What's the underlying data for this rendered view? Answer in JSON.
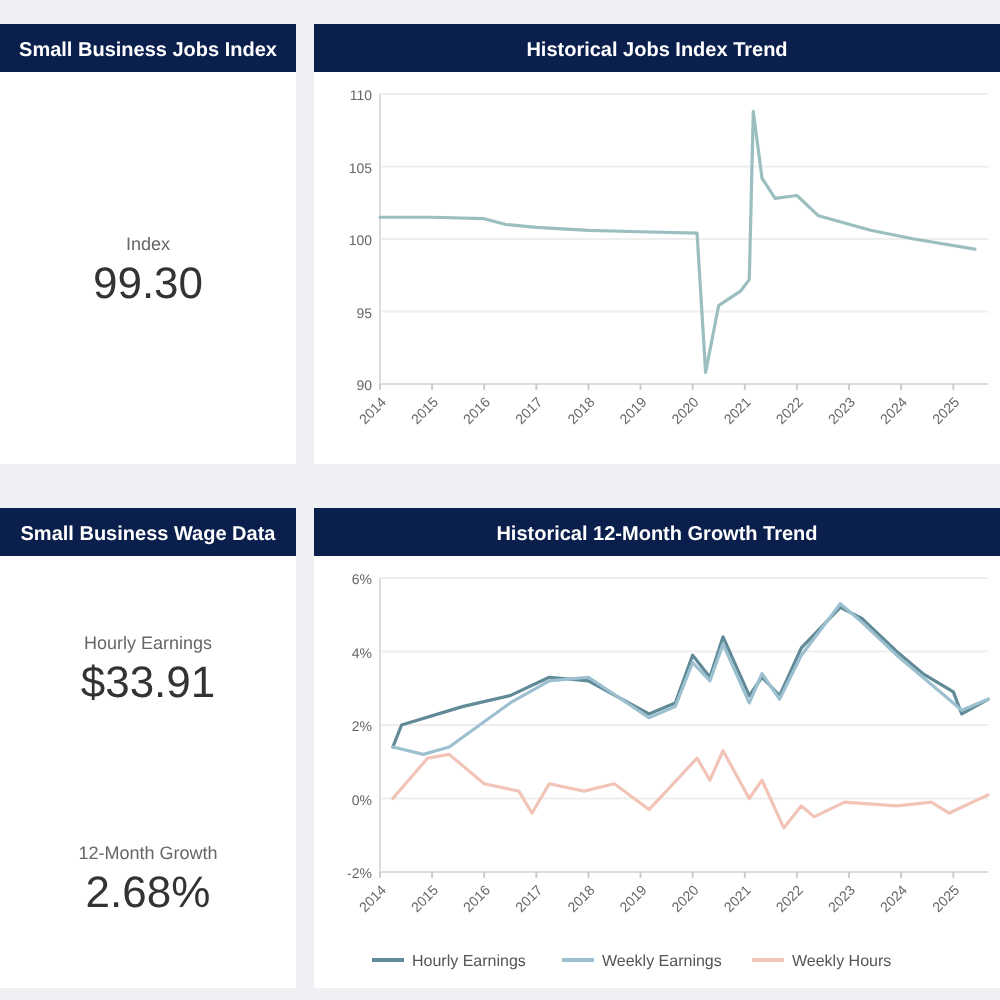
{
  "chart_data": [
    {
      "type": "other",
      "title": "Small Business Jobs Index",
      "annotations": [
        "Index",
        "99.30"
      ]
    },
    {
      "type": "line",
      "title": "Historical Jobs Index Trend",
      "x": [
        "2014-01",
        "2015-01",
        "2016-01",
        "2016-06",
        "2017-01",
        "2018-01",
        "2019-01",
        "2020-02",
        "2020-04",
        "2020-07",
        "2020-12",
        "2021-02",
        "2021-03",
        "2021-05",
        "2021-08",
        "2022-01",
        "2022-06",
        "2023-06",
        "2024-04",
        "2025-06"
      ],
      "series": [
        {
          "color": "#9bbfc0",
          "values": [
            101.5,
            101.5,
            101.4,
            101.0,
            100.8,
            100.6,
            100.5,
            100.4,
            90.8,
            95.4,
            96.4,
            97.2,
            108.8,
            104.2,
            102.8,
            103.0,
            101.6,
            100.6,
            100.0,
            99.3
          ]
        }
      ],
      "xlim": [
        "2014-01",
        "2025-09"
      ],
      "xticks": [
        "2014",
        "2015",
        "2016",
        "2017",
        "2018",
        "2019",
        "2020",
        "2021",
        "2022",
        "2023",
        "2024",
        "2025"
      ],
      "ylim": [
        90,
        110
      ],
      "yticks": [
        90,
        95,
        100,
        105,
        110
      ],
      "grid": "y",
      "marker": "none",
      "line_style": "solid",
      "legend": false
    },
    {
      "type": "other",
      "title": "Small Business Wage Data",
      "annotations": [
        "Hourly Earnings",
        "$33.91",
        "12-Month Growth",
        "2.68%"
      ]
    },
    {
      "type": "line",
      "title": "Historical 12-Month Growth Trend",
      "xlim": [
        "2014-01",
        "2025-09"
      ],
      "xticks": [
        "2014",
        "2015",
        "2016",
        "2017",
        "2018",
        "2019",
        "2020",
        "2021",
        "2022",
        "2023",
        "2024",
        "2025"
      ],
      "ylim": [
        -2,
        6
      ],
      "yticks": [
        {
          "value": -2,
          "label": "-2%"
        },
        {
          "value": 0,
          "label": "0%"
        },
        {
          "value": 2,
          "label": "2%"
        },
        {
          "value": 4,
          "label": "4%"
        },
        {
          "value": 6,
          "label": "6%"
        }
      ],
      "grid": "y",
      "marker": "none",
      "line_style": "solid",
      "legend": "bottom",
      "series": [
        {
          "name": "Hourly Earnings",
          "color": "#5f8a96",
          "x": [
            "2014-04",
            "2014-06",
            "2015-08",
            "2016-07",
            "2017-04",
            "2018-01",
            "2019-03",
            "2019-09",
            "2020-01",
            "2020-05",
            "2020-08",
            "2021-02",
            "2021-05",
            "2021-09",
            "2022-02",
            "2022-11",
            "2023-04",
            "2023-12",
            "2024-06",
            "2025-01",
            "2025-03",
            "2025-09"
          ],
          "values": [
            1.4,
            2.0,
            2.5,
            2.8,
            3.3,
            3.2,
            2.3,
            2.6,
            3.9,
            3.3,
            4.4,
            2.8,
            3.3,
            2.8,
            4.1,
            5.2,
            4.9,
            4.0,
            3.4,
            2.9,
            2.3,
            2.7
          ]
        },
        {
          "name": "Weekly Earnings",
          "color": "#9cc0cf",
          "x": [
            "2014-04",
            "2014-11",
            "2015-05",
            "2016-07",
            "2017-04",
            "2018-01",
            "2019-03",
            "2019-09",
            "2020-01",
            "2020-05",
            "2020-08",
            "2021-02",
            "2021-05",
            "2021-09",
            "2022-02",
            "2022-11",
            "2023-04",
            "2023-12",
            "2024-06",
            "2025-01",
            "2025-03",
            "2025-09"
          ],
          "values": [
            1.4,
            1.2,
            1.4,
            2.6,
            3.2,
            3.3,
            2.2,
            2.5,
            3.7,
            3.2,
            4.2,
            2.6,
            3.4,
            2.7,
            3.9,
            5.3,
            4.8,
            3.9,
            3.3,
            2.6,
            2.4,
            2.7
          ]
        },
        {
          "name": "Weekly Hours",
          "color": "#f2c4b8",
          "x": [
            "2014-04",
            "2014-12",
            "2015-05",
            "2016-01",
            "2016-09",
            "2016-12",
            "2017-04",
            "2017-12",
            "2018-07",
            "2019-03",
            "2019-07",
            "2020-02",
            "2020-05",
            "2020-08",
            "2021-02",
            "2021-05",
            "2021-10",
            "2022-02",
            "2022-05",
            "2022-12",
            "2023-12",
            "2024-08",
            "2024-12",
            "2025-09"
          ],
          "values": [
            0.0,
            1.1,
            1.2,
            0.4,
            0.2,
            -0.4,
            0.4,
            0.2,
            0.4,
            -0.3,
            0.2,
            1.1,
            0.5,
            1.3,
            0.0,
            0.5,
            -0.8,
            -0.2,
            -0.5,
            -0.1,
            -0.2,
            -0.1,
            -0.4,
            0.1
          ]
        }
      ]
    }
  ]
}
